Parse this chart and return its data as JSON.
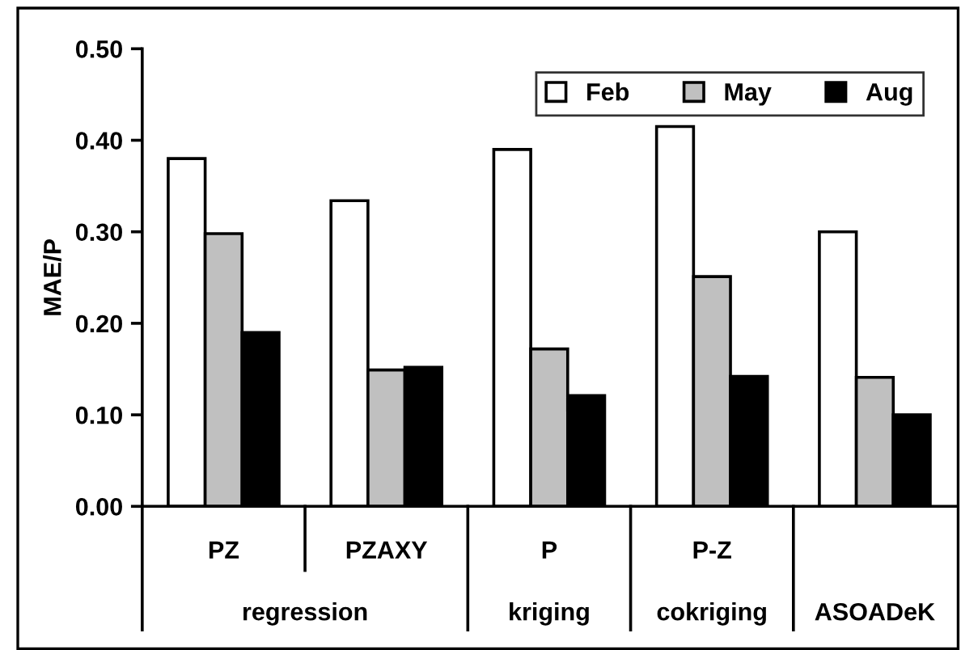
{
  "chart_data": {
    "type": "bar",
    "ylabel": "MAE/P",
    "categories": [
      "PZ",
      "PZAXY",
      "P",
      "P-Z",
      null
    ],
    "series": [
      {
        "name": "Feb",
        "color": "#ffffff",
        "values": [
          0.38,
          0.334,
          0.39,
          0.415,
          0.3
        ]
      },
      {
        "name": "May",
        "color": "#c0c0c0",
        "values": [
          0.298,
          0.149,
          0.172,
          0.251,
          0.141
        ]
      },
      {
        "name": "Aug",
        "color": "#000000",
        "values": [
          0.19,
          0.152,
          0.121,
          0.142,
          0.1
        ]
      }
    ],
    "annotations": [
      "regression",
      "kriging",
      "cokriging",
      "ASOADeK"
    ],
    "ylim": [
      0,
      0.5
    ],
    "yticks": [
      {
        "value": 0,
        "label": "0.00"
      },
      {
        "value": 0.1,
        "label": "0.10"
      },
      {
        "value": 0.2,
        "label": "0.20"
      },
      {
        "value": 0.3,
        "label": "0.30"
      },
      {
        "value": 0.4,
        "label": "0.40"
      },
      {
        "value": 0.5,
        "label": "0.50"
      }
    ],
    "grid": false,
    "legend": "top right"
  }
}
